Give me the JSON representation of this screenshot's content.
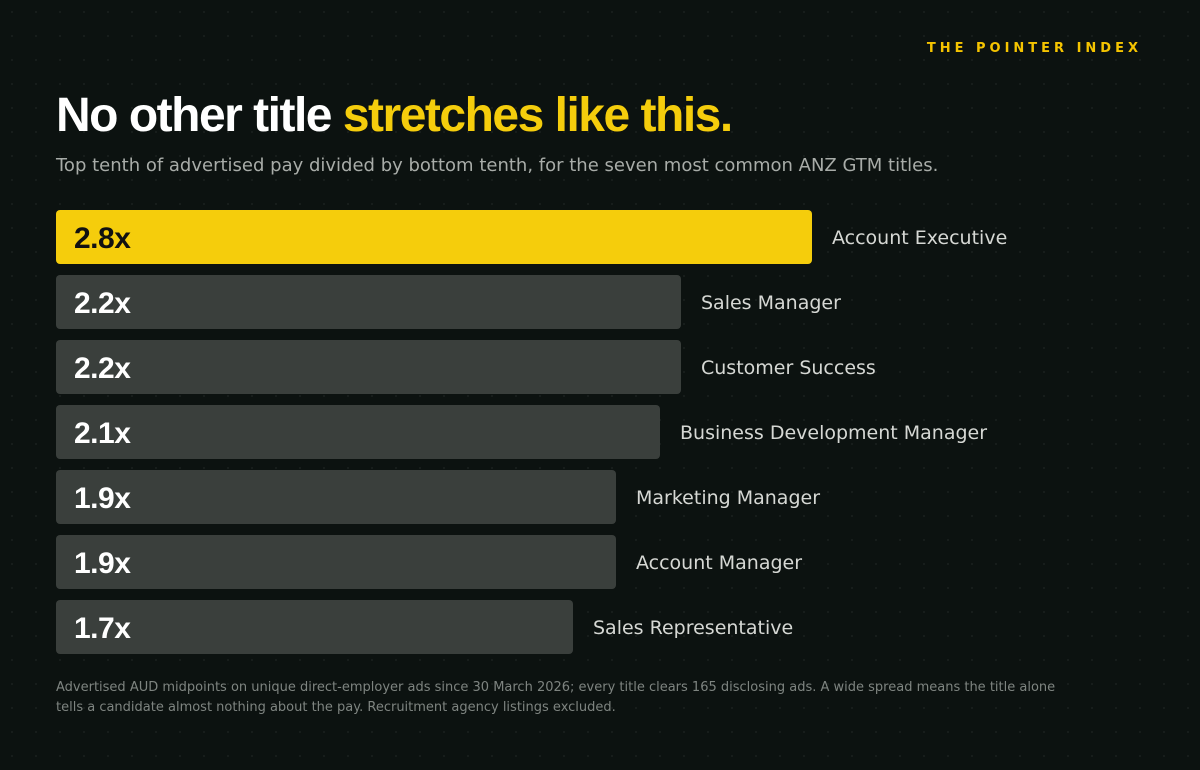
{
  "brand": "THE POINTER INDEX",
  "title": {
    "lead": "No other title ",
    "highlight": "stretches like this."
  },
  "subtitle": "Top tenth of advertised pay divided by bottom tenth, for the seven most common ANZ GTM titles.",
  "colors": {
    "highlight": "#f5cd0c",
    "bar": "#3a3f3c",
    "background": "#0c1210"
  },
  "chart_data": {
    "type": "bar",
    "orientation": "horizontal",
    "categories": [
      "Account Executive",
      "Sales Manager",
      "Customer Success",
      "Business Development Manager",
      "Marketing Manager",
      "Account Manager",
      "Sales Representative"
    ],
    "values": [
      2.8,
      2.2,
      2.2,
      2.1,
      1.9,
      1.9,
      1.7
    ],
    "value_labels": [
      "2.8x",
      "2.2x",
      "2.2x",
      "2.1x",
      "1.9x",
      "1.9x",
      "1.7x"
    ],
    "highlighted_category": "Account Executive",
    "grid": false,
    "legend": "none"
  },
  "footnote": "Advertised AUD midpoints on unique direct-employer ads since 30 March 2026; every title clears 165 disclosing ads. A wide spread means the title alone tells a candidate almost nothing about the pay. Recruitment agency listings excluded."
}
